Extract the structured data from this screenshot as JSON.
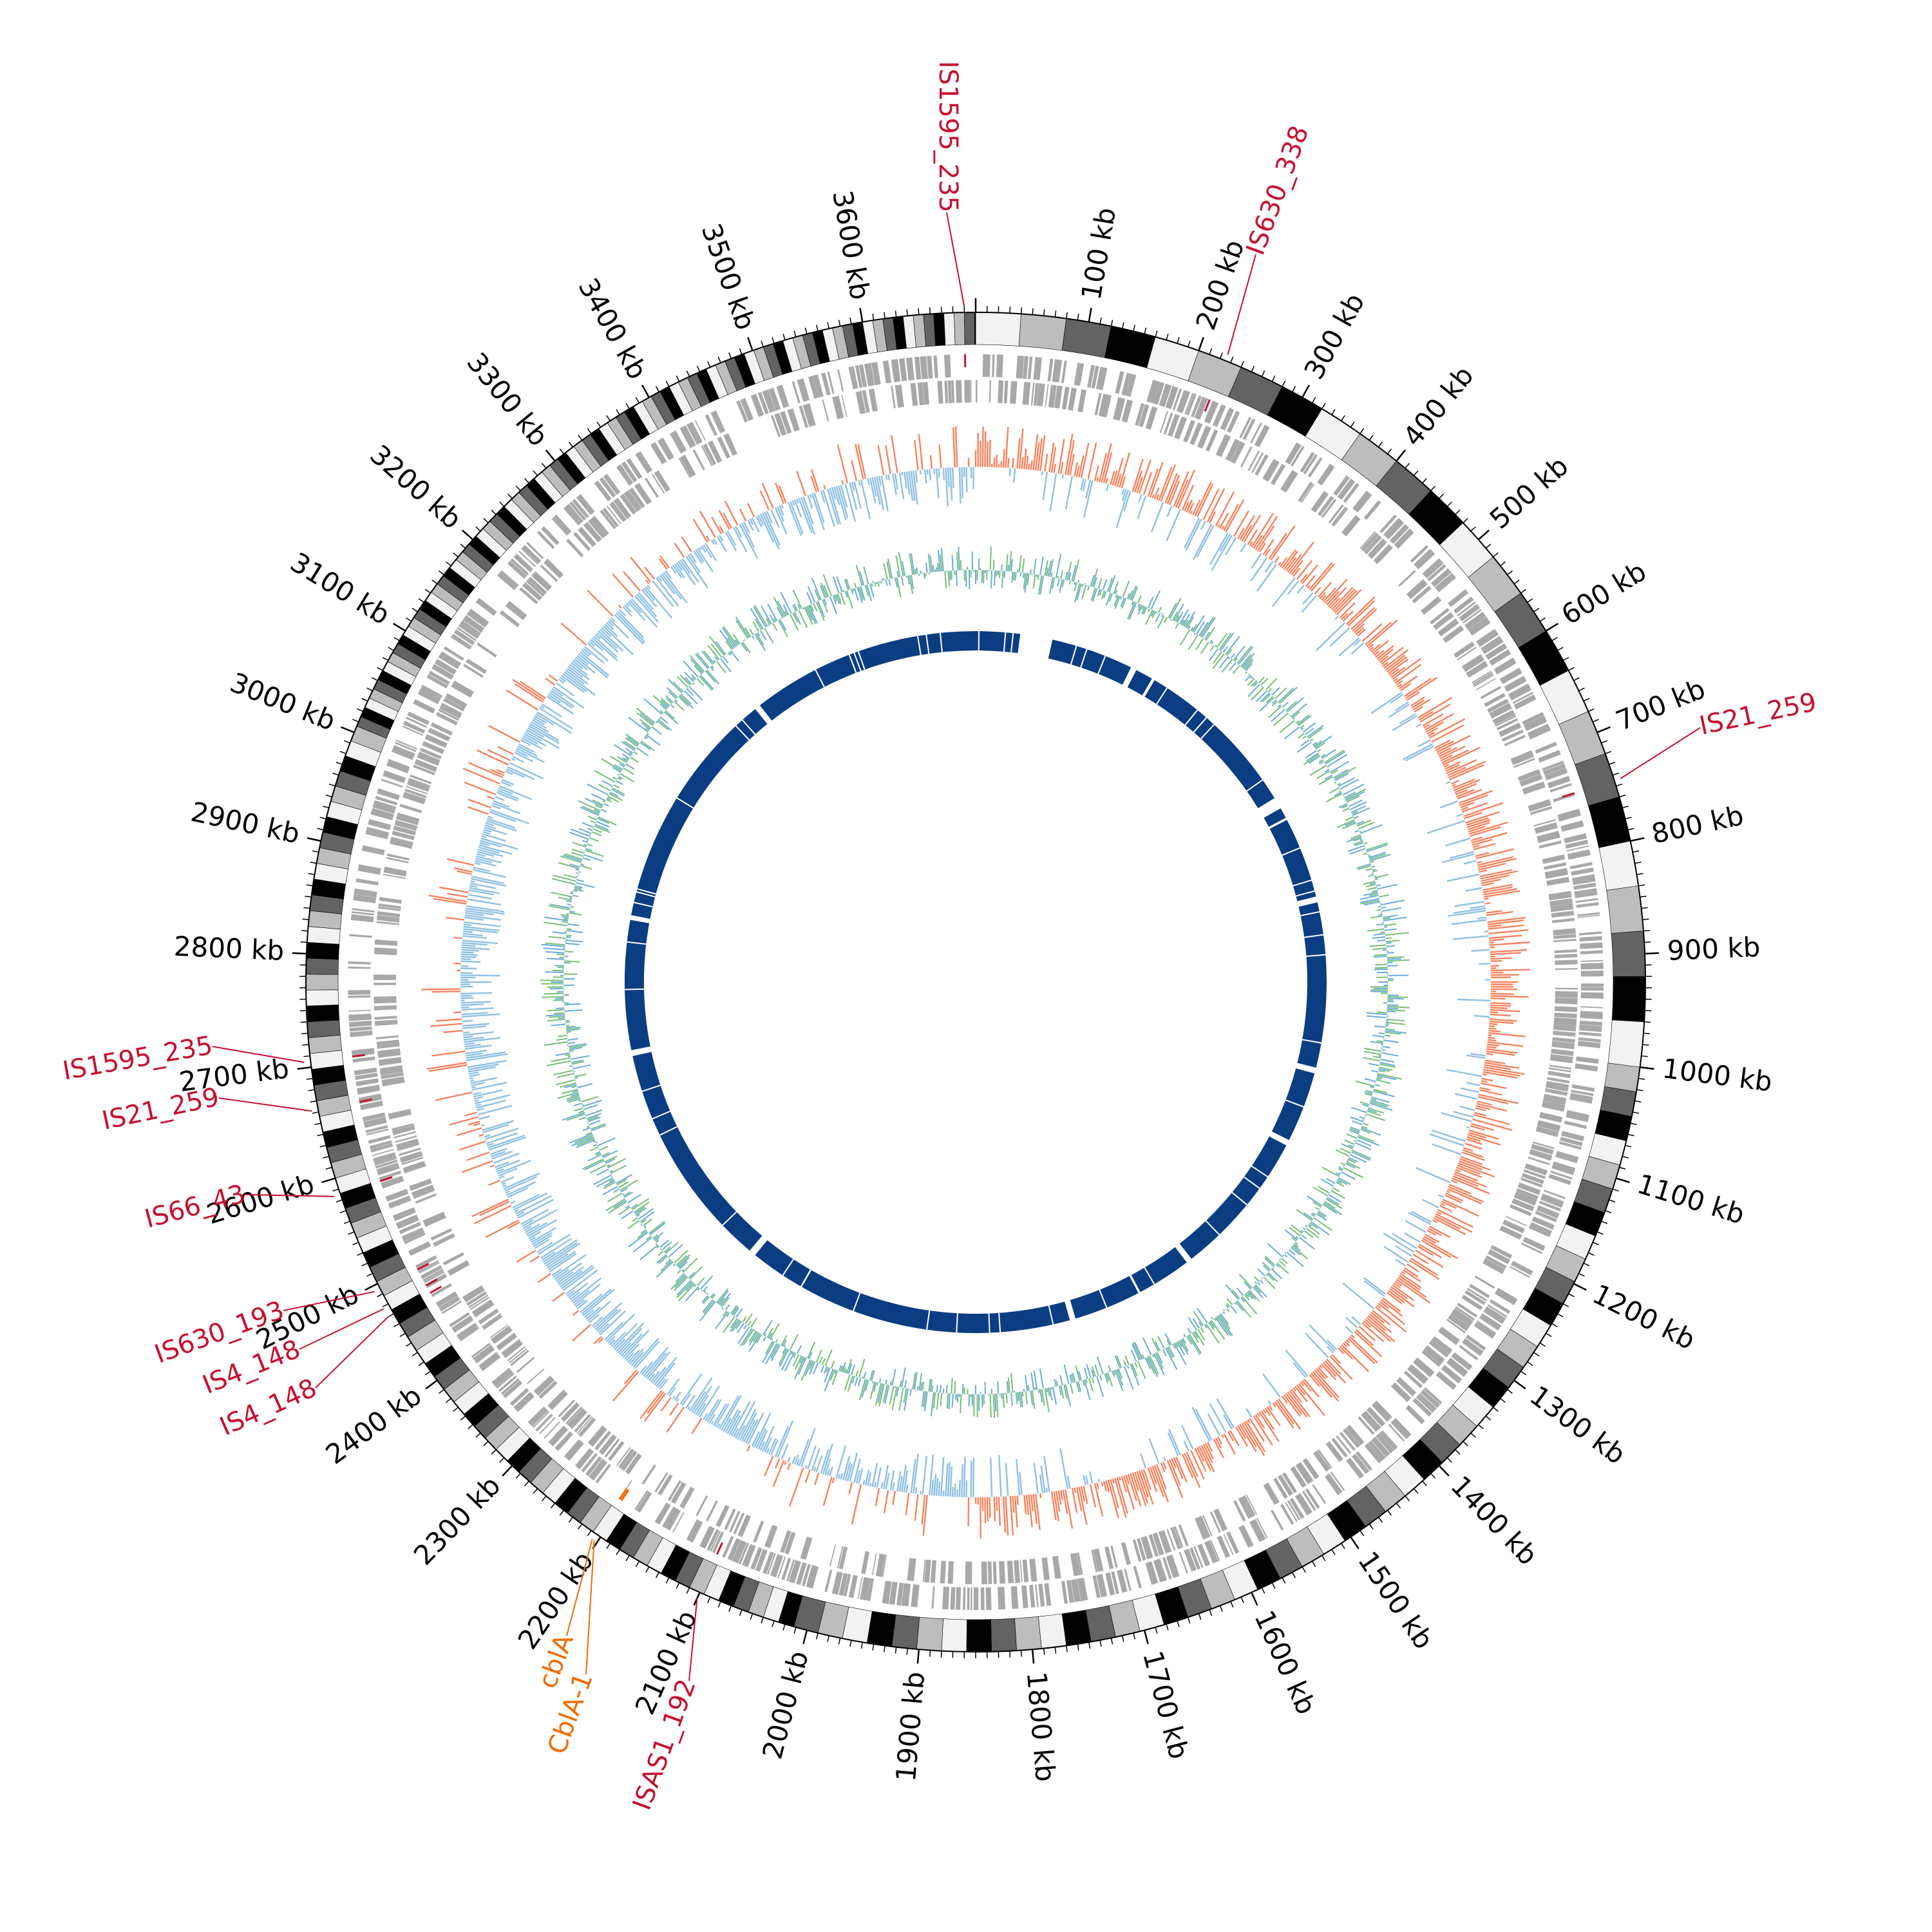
{
  "genome": {
    "length_kb": 3700,
    "tick_unit": "kb",
    "tick_labels": [
      "100 kb",
      "200 kb",
      "300 kb",
      "400 kb",
      "500 kb",
      "600 kb",
      "700 kb",
      "800 kb",
      "900 kb",
      "1000 kb",
      "1100 kb",
      "1200 kb",
      "1300 kb",
      "1400 kb",
      "1500 kb",
      "1600 kb",
      "1700 kb",
      "1800 kb",
      "1900 kb",
      "2000 kb",
      "2100 kb",
      "2200 kb",
      "2300 kb",
      "2400 kb",
      "2500 kb",
      "2600 kb",
      "2700 kb",
      "2800 kb",
      "2900 kb",
      "3000 kb",
      "3100 kb",
      "3200 kb",
      "3300 kb",
      "3400 kb",
      "3500 kb",
      "3600 kb"
    ],
    "tick_positions_kb": [
      100,
      200,
      300,
      400,
      500,
      600,
      700,
      800,
      900,
      1000,
      1100,
      1200,
      1300,
      1400,
      1500,
      1600,
      1700,
      1800,
      1900,
      2000,
      2100,
      2200,
      2300,
      2400,
      2500,
      2600,
      2700,
      2800,
      2900,
      3000,
      3100,
      3200,
      3300,
      3400,
      3500,
      3600
    ]
  },
  "tracks": [
    {
      "name": "coordinate-band",
      "colors": [
        "#f2f2f2",
        "#bdbdbd",
        "#636363",
        "#000000"
      ]
    },
    {
      "name": "genes",
      "color": "#a8a8a8"
    },
    {
      "name": "gc-skew",
      "positive_color": "#f4835e",
      "negative_color": "#8fc0e2"
    },
    {
      "name": "gc-content",
      "colors": [
        "#76bf75",
        "#6aabdc"
      ]
    },
    {
      "name": "conserved-blocks",
      "color": "#0b3d82"
    }
  ],
  "annotations": [
    {
      "label": "IS1595_235",
      "position_kb": 3690,
      "color": "#c8102e"
    },
    {
      "label": "IS630_338",
      "position_kb": 225,
      "color": "#c8102e"
    },
    {
      "label": "IS21_259",
      "position_kb": 745,
      "color": "#c8102e"
    },
    {
      "label": "IS1595_235",
      "position_kb": 2705,
      "color": "#c8102e"
    },
    {
      "label": "IS21_259",
      "position_kb": 2662,
      "color": "#c8102e"
    },
    {
      "label": "IS66_43",
      "position_kb": 2585,
      "color": "#c8102e"
    },
    {
      "label": "IS630_193",
      "position_kb": 2495,
      "color": "#c8102e"
    },
    {
      "label": "IS4_148",
      "position_kb": 2478,
      "color": "#c8102e"
    },
    {
      "label": "IS4_148",
      "position_kb": 2470,
      "color": "#c8102e"
    },
    {
      "label": "ISAS1_192",
      "position_kb": 2100,
      "color": "#c8102e"
    },
    {
      "label": "cblA",
      "position_kb": 2205,
      "color": "#ef6c00"
    },
    {
      "label": "CblA-1",
      "position_kb": 2203,
      "color": "#ef6c00"
    }
  ]
}
